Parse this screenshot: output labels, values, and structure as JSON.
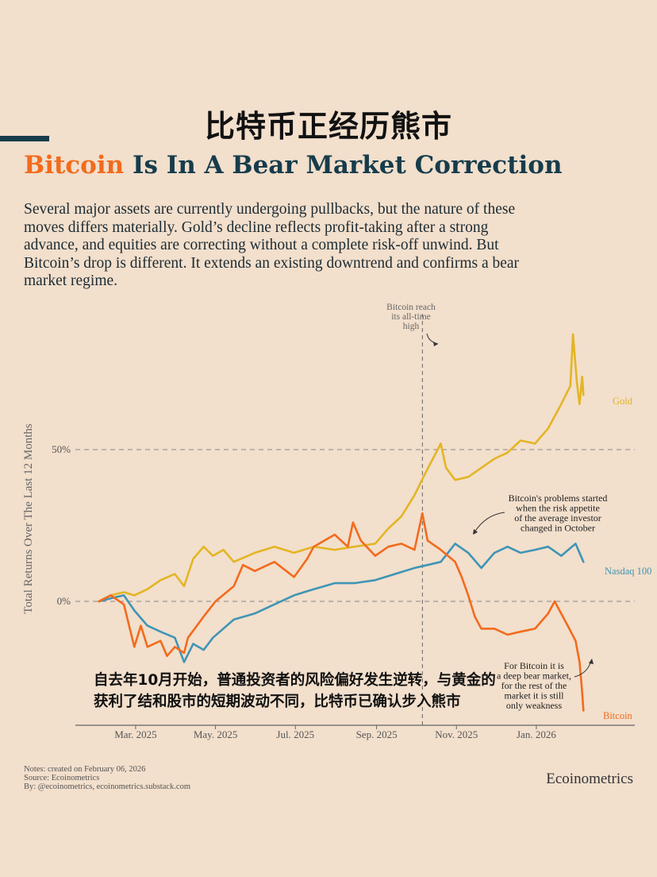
{
  "header": {
    "cn_title": "比特币正经历熊市",
    "title_highlight": "Bitcoin",
    "title_rest": " Is In A Bear Market Correction",
    "description": "Several major assets are currently undergoing pullbacks, but the nature of these moves differs materially. Gold’s decline reflects profit-taking after a strong advance, and equities are correcting without a complete risk-off unwind. But Bitcoin’s drop is different. It extends an existing downtrend and confirms a bear market regime."
  },
  "overlay_caption": "自去年10月开始，普通投资者的风险偏好发生逆转，与黄金的获利了结和股市的短期波动不同，比特币已确认步入熊市",
  "footer": {
    "note": "Notes: created on February 06, 2026",
    "source": "Source: Ecoinometrics",
    "by": "By: @ecoinometrics, ecoinometrics.substack.com",
    "brand": "Ecoinometrics"
  },
  "colors": {
    "bitcoin": "#f26b1d",
    "gold": "#e3b523",
    "nasdaq": "#3f95b5",
    "title_dark": "#163c4c",
    "background": "#f2dfcc"
  },
  "chart_data": {
    "type": "line",
    "ylabel": "Total Returns Over The Last 12 Months",
    "xlabel": "",
    "y_ticks": [
      {
        "value": 0,
        "label": "0%"
      },
      {
        "value": 50,
        "label": "50%"
      }
    ],
    "x_ticks": [
      {
        "value": "2025-03-01",
        "label": "Mar. 2025"
      },
      {
        "value": "2025-05-01",
        "label": "May. 2025"
      },
      {
        "value": "2025-07-01",
        "label": "Jul. 2025"
      },
      {
        "value": "2025-09-01",
        "label": "Sep. 2025"
      },
      {
        "value": "2025-11-01",
        "label": "Nov. 2025"
      },
      {
        "value": "2026-01-01",
        "label": "Jan. 2026"
      }
    ],
    "xlim": [
      "2025-01-14",
      "2026-02-27"
    ],
    "ylim": [
      -41,
      90
    ],
    "reference_line": {
      "date": "2025-10-06",
      "label": "Bitcoin reach its all-time high"
    },
    "annotations": [
      {
        "text": "Bitcoin's problems started when the risk appetite of the average investor changed in October"
      },
      {
        "text": "For Bitcoin it is a deep bear market, for the rest of the market it is still only weakness"
      }
    ],
    "series": [
      {
        "name": "Gold",
        "color": "#e3b523",
        "points": [
          [
            "2025-02-01",
            0
          ],
          [
            "2025-02-10",
            2
          ],
          [
            "2025-02-20",
            3
          ],
          [
            "2025-02-28",
            2
          ],
          [
            "2025-03-10",
            4
          ],
          [
            "2025-03-20",
            7
          ],
          [
            "2025-03-31",
            9
          ],
          [
            "2025-04-07",
            5
          ],
          [
            "2025-04-14",
            14
          ],
          [
            "2025-04-22",
            18
          ],
          [
            "2025-04-29",
            15
          ],
          [
            "2025-05-07",
            17
          ],
          [
            "2025-05-15",
            13
          ],
          [
            "2025-05-31",
            16
          ],
          [
            "2025-06-15",
            18
          ],
          [
            "2025-06-30",
            16
          ],
          [
            "2025-07-15",
            18
          ],
          [
            "2025-07-31",
            17
          ],
          [
            "2025-08-15",
            18
          ],
          [
            "2025-08-31",
            19
          ],
          [
            "2025-09-10",
            24
          ],
          [
            "2025-09-20",
            28
          ],
          [
            "2025-09-30",
            35
          ],
          [
            "2025-10-08",
            42
          ],
          [
            "2025-10-20",
            52
          ],
          [
            "2025-10-24",
            44
          ],
          [
            "2025-10-31",
            40
          ],
          [
            "2025-11-10",
            41
          ],
          [
            "2025-11-20",
            44
          ],
          [
            "2025-11-30",
            47
          ],
          [
            "2025-12-10",
            49
          ],
          [
            "2025-12-20",
            53
          ],
          [
            "2025-12-31",
            52
          ],
          [
            "2026-01-10",
            57
          ],
          [
            "2026-01-20",
            65
          ],
          [
            "2026-01-27",
            71
          ],
          [
            "2026-01-29",
            88
          ],
          [
            "2026-02-01",
            72
          ],
          [
            "2026-02-03",
            65
          ],
          [
            "2026-02-05",
            74
          ],
          [
            "2026-02-06",
            68
          ]
        ]
      },
      {
        "name": "Nasdaq 100",
        "color": "#3f95b5",
        "points": [
          [
            "2025-02-01",
            0
          ],
          [
            "2025-02-10",
            1
          ],
          [
            "2025-02-20",
            2
          ],
          [
            "2025-02-28",
            -3
          ],
          [
            "2025-03-10",
            -8
          ],
          [
            "2025-03-20",
            -10
          ],
          [
            "2025-03-31",
            -12
          ],
          [
            "2025-04-07",
            -20
          ],
          [
            "2025-04-14",
            -14
          ],
          [
            "2025-04-22",
            -16
          ],
          [
            "2025-04-29",
            -12
          ],
          [
            "2025-05-15",
            -6
          ],
          [
            "2025-05-31",
            -4
          ],
          [
            "2025-06-15",
            -1
          ],
          [
            "2025-06-30",
            2
          ],
          [
            "2025-07-15",
            4
          ],
          [
            "2025-07-31",
            6
          ],
          [
            "2025-08-15",
            6
          ],
          [
            "2025-08-31",
            7
          ],
          [
            "2025-09-15",
            9
          ],
          [
            "2025-09-30",
            11
          ],
          [
            "2025-10-10",
            12
          ],
          [
            "2025-10-20",
            13
          ],
          [
            "2025-10-31",
            19
          ],
          [
            "2025-11-10",
            16
          ],
          [
            "2025-11-20",
            11
          ],
          [
            "2025-11-30",
            16
          ],
          [
            "2025-12-10",
            18
          ],
          [
            "2025-12-20",
            16
          ],
          [
            "2025-12-31",
            17
          ],
          [
            "2026-01-10",
            18
          ],
          [
            "2026-01-20",
            15
          ],
          [
            "2026-01-31",
            19
          ],
          [
            "2026-02-06",
            13
          ]
        ]
      },
      {
        "name": "Bitcoin",
        "color": "#f26b1d",
        "points": [
          [
            "2025-02-01",
            0
          ],
          [
            "2025-02-10",
            2
          ],
          [
            "2025-02-20",
            -1
          ],
          [
            "2025-02-28",
            -15
          ],
          [
            "2025-03-05",
            -8
          ],
          [
            "2025-03-10",
            -15
          ],
          [
            "2025-03-20",
            -13
          ],
          [
            "2025-03-25",
            -18
          ],
          [
            "2025-03-31",
            -15
          ],
          [
            "2025-04-07",
            -17
          ],
          [
            "2025-04-10",
            -12
          ],
          [
            "2025-04-22",
            -5
          ],
          [
            "2025-05-01",
            0
          ],
          [
            "2025-05-15",
            5
          ],
          [
            "2025-05-22",
            12
          ],
          [
            "2025-05-31",
            10
          ],
          [
            "2025-06-15",
            13
          ],
          [
            "2025-06-30",
            8
          ],
          [
            "2025-07-10",
            14
          ],
          [
            "2025-07-15",
            18
          ],
          [
            "2025-07-31",
            22
          ],
          [
            "2025-08-10",
            18
          ],
          [
            "2025-08-14",
            26
          ],
          [
            "2025-08-20",
            20
          ],
          [
            "2025-08-31",
            15
          ],
          [
            "2025-09-10",
            18
          ],
          [
            "2025-09-20",
            19
          ],
          [
            "2025-09-30",
            17
          ],
          [
            "2025-10-06",
            29
          ],
          [
            "2025-10-10",
            20
          ],
          [
            "2025-10-20",
            17
          ],
          [
            "2025-10-31",
            13
          ],
          [
            "2025-11-05",
            8
          ],
          [
            "2025-11-10",
            2
          ],
          [
            "2025-11-15",
            -5
          ],
          [
            "2025-11-20",
            -9
          ],
          [
            "2025-11-30",
            -9
          ],
          [
            "2025-12-10",
            -11
          ],
          [
            "2025-12-20",
            -10
          ],
          [
            "2025-12-31",
            -9
          ],
          [
            "2026-01-10",
            -4
          ],
          [
            "2026-01-15",
            0
          ],
          [
            "2026-01-25",
            -8
          ],
          [
            "2026-01-31",
            -13
          ],
          [
            "2026-02-03",
            -20
          ],
          [
            "2026-02-05",
            -30
          ],
          [
            "2026-02-06",
            -36
          ]
        ]
      }
    ]
  }
}
